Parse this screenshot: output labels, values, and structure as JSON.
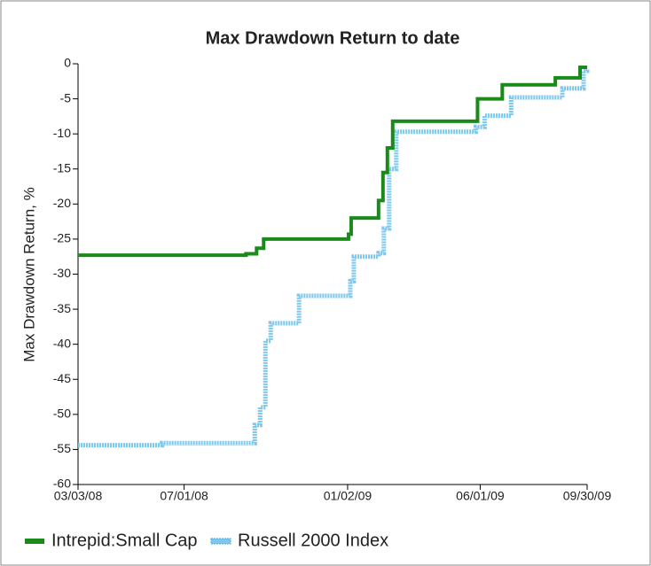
{
  "chart_data": {
    "type": "line",
    "title": "Max Drawdown Return to date",
    "y_label": "Max Drawdown Return, %",
    "step": true,
    "legend": "bottom",
    "xlim": [
      "2008-03-03",
      "2009-09-30"
    ],
    "xticks": [
      {
        "value": "2008-03-03",
        "label": "03/03/08"
      },
      {
        "value": "2008-07-01",
        "label": "07/01/08"
      },
      {
        "value": "2009-01-02",
        "label": "01/02/09"
      },
      {
        "value": "2009-06-01",
        "label": "06/01/09"
      },
      {
        "value": "2009-09-30",
        "label": "09/30/09"
      }
    ],
    "ylim": [
      -60,
      0
    ],
    "yticks": [
      -60,
      -55,
      -50,
      -45,
      -40,
      -35,
      -30,
      -25,
      -20,
      -15,
      -10,
      -5,
      0
    ],
    "series": [
      {
        "name": "Intrepid:Small Cap",
        "color": "#1a8a1a",
        "x": [
          "2008-03-03",
          "2008-09-09",
          "2008-09-21",
          "2008-09-29",
          "2009-01-03",
          "2009-01-06",
          "2009-02-06",
          "2009-02-11",
          "2009-02-16",
          "2009-02-22",
          "2009-05-29",
          "2009-06-26",
          "2009-08-25",
          "2009-09-22",
          "2009-09-30"
        ],
        "values": [
          -27.3,
          -27.1,
          -26.3,
          -25,
          -24.3,
          -22,
          -19.5,
          -15.5,
          -12,
          -8.2,
          -5,
          -3,
          -2,
          -0.5,
          -0.5
        ]
      },
      {
        "name": "Russell 2000 Index",
        "color": "#7cc8ee",
        "x": [
          "2008-03-03",
          "2008-06-06",
          "2008-09-19",
          "2008-09-25",
          "2008-10-01",
          "2008-10-07",
          "2008-11-08",
          "2009-01-05",
          "2009-01-09",
          "2009-02-06",
          "2009-02-12",
          "2009-02-18",
          "2009-02-26",
          "2009-05-27",
          "2009-06-06",
          "2009-07-06",
          "2009-09-02",
          "2009-09-26",
          "2009-09-30"
        ],
        "values": [
          -54.4,
          -54.1,
          -51.5,
          -49,
          -39.5,
          -37,
          -33.1,
          -31,
          -27.5,
          -27,
          -23.5,
          -15,
          -9.7,
          -9,
          -7.4,
          -4.8,
          -3.5,
          -1,
          -0.8
        ]
      }
    ]
  }
}
